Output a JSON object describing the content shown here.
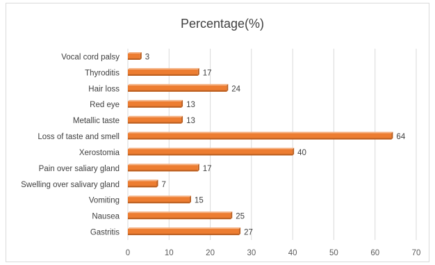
{
  "chart_data": {
    "type": "bar",
    "orientation": "horizontal",
    "title": "Percentage(%)",
    "categories": [
      "Vocal cord palsy",
      "Thyroditis",
      "Hair loss",
      "Red eye",
      "Metallic taste",
      "Loss of taste and smell",
      "Xerostomia",
      "Pain over saliary gland",
      "Swelling over salivary gland",
      "Vomiting",
      "Nausea",
      "Gastritis"
    ],
    "series": [
      {
        "values": [
          3,
          17,
          24,
          13,
          13,
          64,
          40,
          17,
          7,
          15,
          25,
          27
        ]
      }
    ],
    "xlim": [
      0,
      70
    ],
    "xticks": [
      0,
      10,
      20,
      30,
      40,
      50,
      60,
      70
    ],
    "grid": true,
    "data_labels": true,
    "legend": "none",
    "colors": {
      "bar": "#ed7d31",
      "bar_shadow": "#b85d1f",
      "grid": "#d9d9d9"
    }
  }
}
